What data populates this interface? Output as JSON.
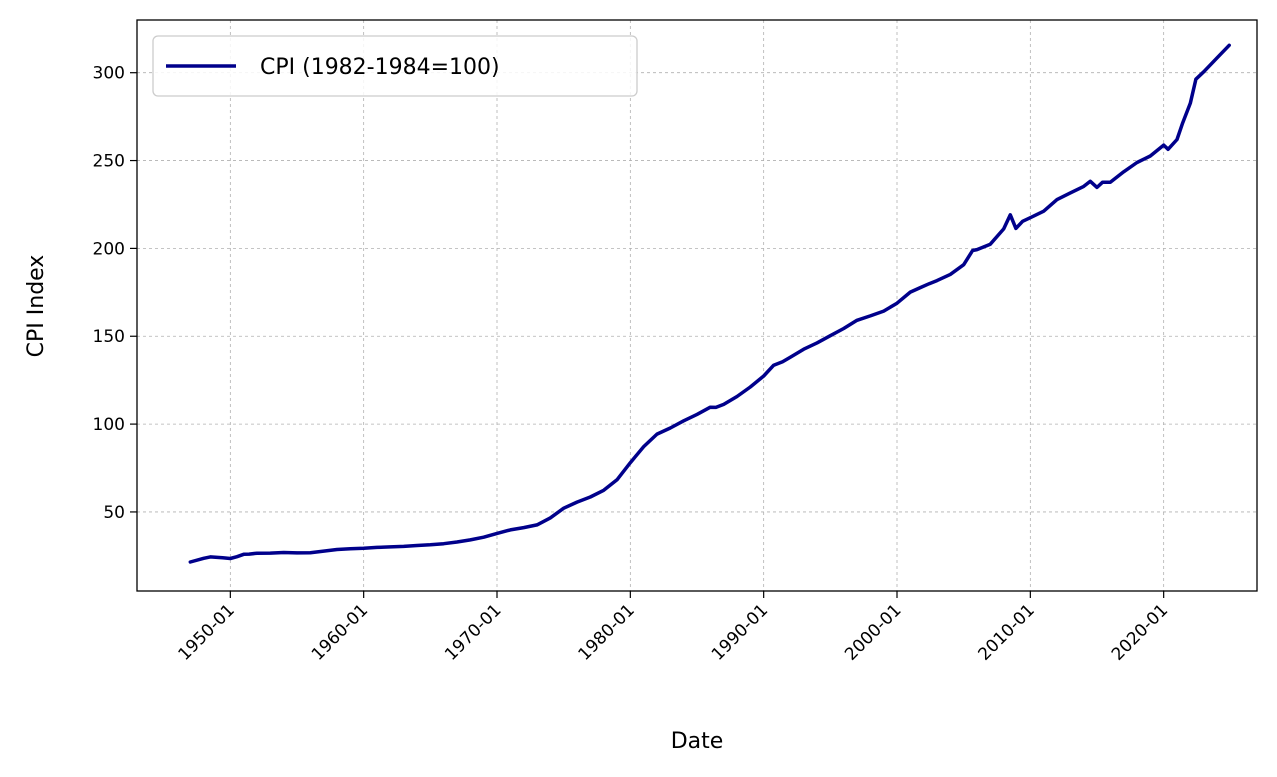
{
  "chart_data": {
    "type": "line",
    "title": "",
    "xlabel": "Date",
    "ylabel": "CPI Index",
    "xlim": [
      "1943-01",
      "2027-01"
    ],
    "ylim": [
      5,
      330
    ],
    "grid": true,
    "legend_position": "top-left",
    "x_ticks": [
      "1950-01",
      "1960-01",
      "1970-01",
      "1980-01",
      "1990-01",
      "2000-01",
      "2010-01",
      "2020-01"
    ],
    "y_ticks": [
      50,
      100,
      150,
      200,
      250,
      300
    ],
    "series": [
      {
        "name": "CPI (1982-1984=100)",
        "color": "#00008b",
        "x": [
          "1947-01",
          "1948-01",
          "1948-07",
          "1949-06",
          "1950-01",
          "1950-07",
          "1951-01",
          "1951-06",
          "1952-01",
          "1953-01",
          "1954-01",
          "1955-01",
          "1956-01",
          "1957-01",
          "1958-01",
          "1959-01",
          "1960-01",
          "1961-01",
          "1962-01",
          "1963-01",
          "1964-01",
          "1965-01",
          "1966-01",
          "1967-01",
          "1968-01",
          "1969-01",
          "1970-01",
          "1971-01",
          "1972-01",
          "1973-01",
          "1974-01",
          "1975-01",
          "1976-01",
          "1977-01",
          "1978-01",
          "1979-01",
          "1980-01",
          "1981-01",
          "1982-01",
          "1983-01",
          "1984-01",
          "1985-01",
          "1986-01",
          "1986-06",
          "1987-01",
          "1988-01",
          "1989-01",
          "1990-01",
          "1990-10",
          "1991-06",
          "1992-01",
          "1993-01",
          "1994-01",
          "1995-01",
          "1996-01",
          "1997-01",
          "1998-01",
          "1999-01",
          "2000-01",
          "2001-01",
          "2001-10",
          "2002-06",
          "2003-01",
          "2004-01",
          "2005-01",
          "2005-09",
          "2006-01",
          "2007-01",
          "2008-01",
          "2008-07",
          "2008-12",
          "2009-06",
          "2010-01",
          "2011-01",
          "2012-01",
          "2013-01",
          "2014-01",
          "2014-07",
          "2015-01",
          "2015-06",
          "2016-01",
          "2017-01",
          "2018-01",
          "2019-01",
          "2020-01",
          "2020-05",
          "2021-01",
          "2021-06",
          "2022-01",
          "2022-06",
          "2023-01",
          "2024-01",
          "2024-12"
        ],
        "values": [
          21.5,
          23.6,
          24.4,
          23.9,
          23.5,
          24.5,
          25.9,
          26.0,
          26.5,
          26.6,
          26.9,
          26.7,
          26.8,
          27.7,
          28.6,
          29.0,
          29.3,
          29.8,
          30.1,
          30.4,
          30.9,
          31.3,
          31.9,
          32.9,
          34.1,
          35.6,
          37.8,
          39.8,
          41.1,
          42.6,
          46.6,
          52.1,
          55.6,
          58.5,
          62.3,
          68.3,
          78.0,
          87.2,
          94.3,
          97.8,
          101.9,
          105.5,
          109.6,
          109.5,
          111.2,
          115.7,
          121.1,
          127.4,
          133.5,
          135.5,
          138.1,
          142.6,
          146.2,
          150.3,
          154.4,
          159.1,
          161.6,
          164.3,
          168.8,
          175.1,
          177.7,
          179.9,
          181.7,
          185.2,
          190.7,
          198.8,
          199.3,
          202.4,
          211.1,
          219.1,
          211.4,
          215.4,
          217.5,
          221.2,
          227.8,
          231.6,
          235.3,
          238.2,
          234.7,
          237.7,
          237.6,
          243.6,
          248.9,
          252.6,
          258.8,
          256.4,
          262.0,
          271.3,
          282.6,
          296.3,
          300.5,
          308.4,
          315.6
        ]
      }
    ]
  }
}
